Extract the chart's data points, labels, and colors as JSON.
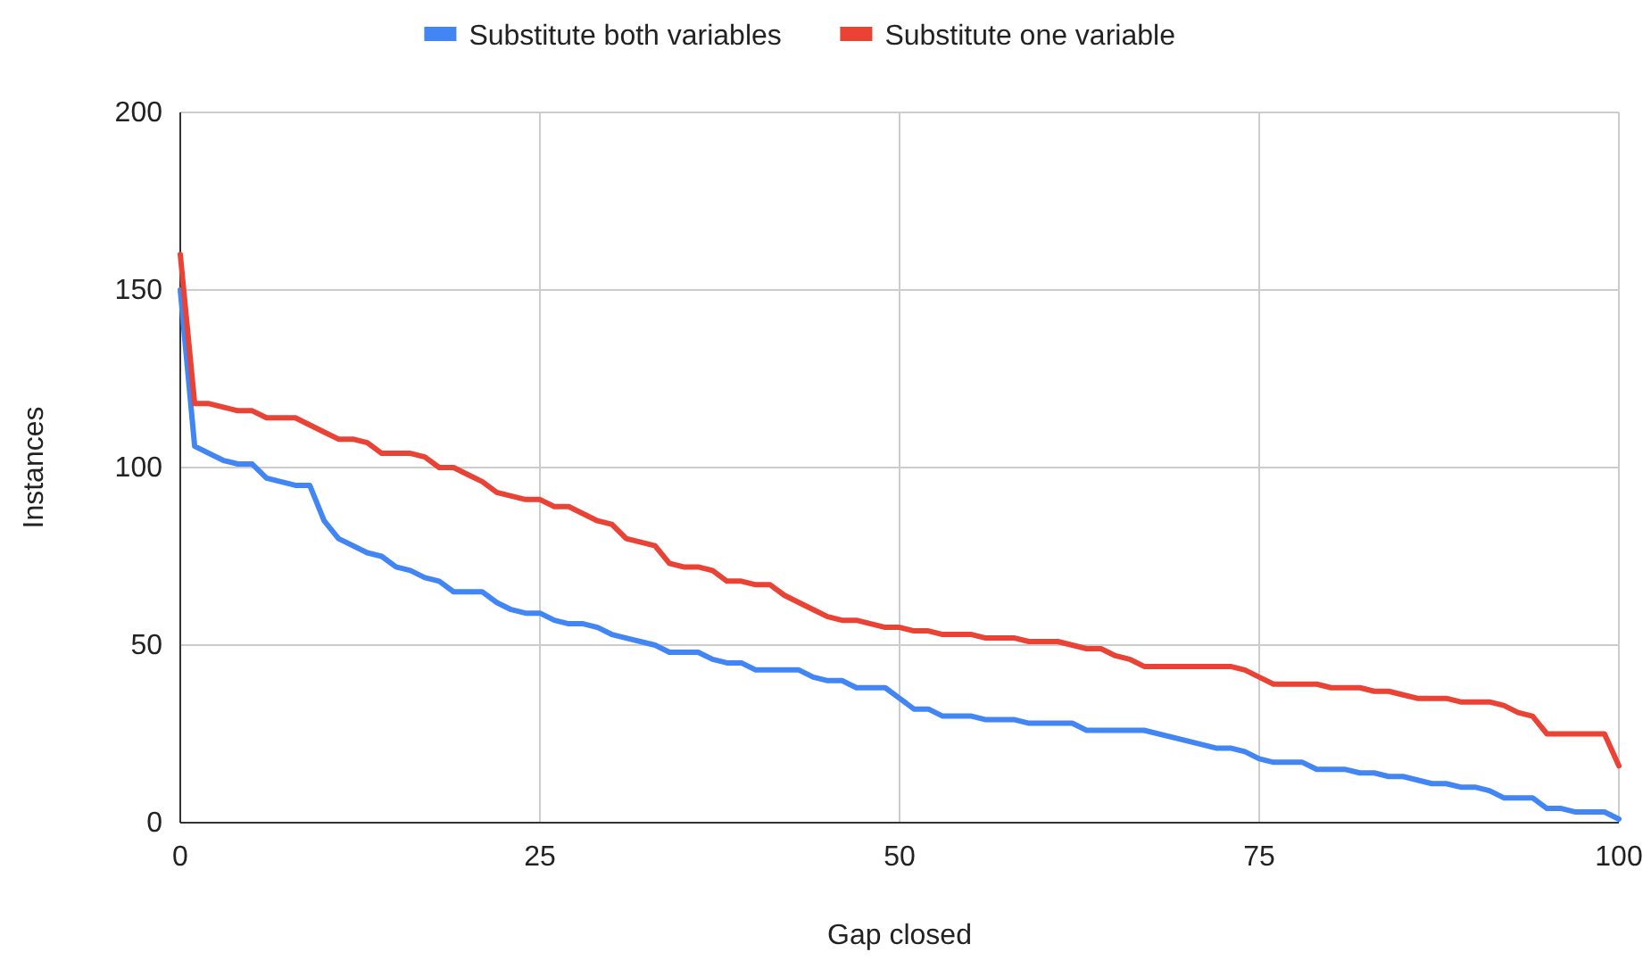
{
  "chart_data": {
    "type": "line",
    "xlabel": "Gap closed",
    "ylabel": "Instances",
    "xlim": [
      0,
      100
    ],
    "xticks": [
      0,
      25,
      50,
      75,
      100
    ],
    "ylim": [
      0,
      200
    ],
    "yticks": [
      0,
      50,
      100,
      150,
      200
    ],
    "grid": true,
    "legend": "top",
    "marker": "none",
    "line_style": "solid",
    "series": [
      {
        "name": "Substitute both variables",
        "color": "#4285f4",
        "x": [
          0,
          1,
          3,
          4,
          5,
          6,
          8,
          9,
          10,
          11,
          13,
          14,
          15,
          16,
          17,
          18,
          19,
          21,
          22,
          23,
          24,
          25,
          26,
          27,
          28,
          29,
          30,
          31,
          33,
          34,
          36,
          37,
          38,
          39,
          40,
          43,
          44,
          45,
          46,
          47,
          49,
          50,
          51,
          52,
          53,
          55,
          56,
          58,
          59,
          62,
          63,
          67,
          70,
          72,
          73,
          74,
          75,
          76,
          78,
          79,
          81,
          82,
          83,
          84,
          85,
          86,
          87,
          88,
          89,
          90,
          91,
          92,
          94,
          95,
          96,
          97,
          99,
          100
        ],
        "values": [
          150,
          106,
          102,
          101,
          101,
          97,
          95,
          95,
          85,
          80,
          76,
          75,
          72,
          71,
          69,
          68,
          65,
          65,
          62,
          60,
          59,
          59,
          57,
          56,
          56,
          55,
          53,
          52,
          50,
          48,
          48,
          46,
          45,
          45,
          43,
          43,
          41,
          40,
          40,
          38,
          38,
          35,
          32,
          32,
          30,
          30,
          29,
          29,
          28,
          28,
          26,
          26,
          23,
          21,
          21,
          20,
          18,
          17,
          17,
          15,
          15,
          14,
          14,
          13,
          13,
          12,
          11,
          11,
          10,
          10,
          9,
          7,
          7,
          4,
          4,
          3,
          3,
          1
        ]
      },
      {
        "name": "Substitute one variable",
        "color": "#ea4335",
        "x": [
          0,
          1,
          2,
          3,
          4,
          5,
          6,
          8,
          9,
          10,
          11,
          12,
          13,
          14,
          16,
          17,
          18,
          19,
          20,
          21,
          22,
          23,
          24,
          25,
          26,
          27,
          28,
          29,
          30,
          31,
          32,
          33,
          34,
          35,
          36,
          37,
          38,
          39,
          40,
          41,
          42,
          43,
          44,
          45,
          46,
          47,
          48,
          49,
          50,
          51,
          52,
          53,
          55,
          56,
          58,
          59,
          61,
          62,
          63,
          64,
          65,
          66,
          67,
          73,
          74,
          75,
          76,
          79,
          80,
          82,
          83,
          84,
          85,
          86,
          88,
          89,
          91,
          92,
          93,
          94,
          95,
          99,
          100
        ],
        "values": [
          160,
          118,
          118,
          117,
          116,
          116,
          114,
          114,
          112,
          110,
          108,
          108,
          107,
          104,
          104,
          103,
          100,
          100,
          98,
          96,
          93,
          92,
          91,
          91,
          89,
          89,
          87,
          85,
          84,
          80,
          79,
          78,
          73,
          72,
          72,
          71,
          68,
          68,
          67,
          67,
          64,
          62,
          60,
          58,
          57,
          57,
          56,
          55,
          55,
          54,
          54,
          53,
          53,
          52,
          52,
          51,
          51,
          50,
          49,
          49,
          47,
          46,
          44,
          44,
          43,
          41,
          39,
          39,
          38,
          38,
          37,
          37,
          36,
          35,
          35,
          34,
          34,
          33,
          31,
          30,
          25,
          25,
          16
        ]
      }
    ]
  }
}
